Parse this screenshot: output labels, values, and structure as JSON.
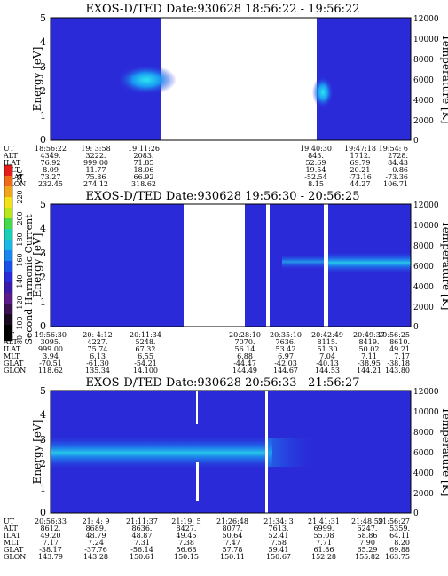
{
  "panels": [
    {
      "title": "EXOS-D/TED   Date:930628   18:56:22 - 19:56:22",
      "ylabel_left": "Energy [eV]",
      "ylabel_right": "Temperature [K]",
      "columns": [
        [
          "18:56:22",
          "4349.",
          "76.92",
          "8.09",
          "73.27",
          "232.45"
        ],
        [
          "19: 3:58",
          "3222.",
          "999.00",
          "11.77",
          "75.86",
          "274.12"
        ],
        [
          "19:11:26",
          "2083.",
          "71.85",
          "18.06",
          "66.92",
          "318.62"
        ],
        [
          "19:40:30",
          "843.",
          "52.69",
          "19.54",
          "-52.54",
          "8.15"
        ],
        [
          "19:47:18",
          "1712.",
          "69.79",
          "20.21",
          "-73.16",
          "44.27"
        ],
        [
          "19:54: 6",
          "2728.",
          "84.43",
          "0.86",
          "-73.36",
          "106.71"
        ]
      ]
    },
    {
      "title": "EXOS-D/TED   Date:930628   19:56:30 - 20:56:25",
      "ylabel_left": "Energy [eV]",
      "ylabel_right": "Temperature [K]",
      "columns": [
        [
          "19:56:30",
          "3095.",
          "999.00",
          "3.94",
          "-70.51",
          "118.62"
        ],
        [
          "20: 4:12",
          "4227.",
          "75.74",
          "6.13",
          "-61.30",
          "135.34"
        ],
        [
          "20:11:34",
          "5248.",
          "67.32",
          "6.55",
          "-54.21",
          "14.100"
        ],
        [
          "20:28:10",
          "7070.",
          "56.14",
          "6.88",
          "-44.47",
          "144.49"
        ],
        [
          "20:35:10",
          "7636.",
          "53.42",
          "6.97",
          "-42.03",
          "144.67"
        ],
        [
          "20:42:49",
          "8115.",
          "51.30",
          "7.04",
          "-40.13",
          "144.53"
        ],
        [
          "20:49:37",
          "8419.",
          "50.02",
          "7.11",
          "-38.95",
          "144.21"
        ],
        [
          "20:56:25",
          "8610.",
          "49.21",
          "7.17",
          "-38.18",
          "143.80"
        ]
      ]
    },
    {
      "title": "EXOS-D/TED   Date:930628   20:56:33 - 21:56:27",
      "ylabel_left": "Energy [eV]",
      "ylabel_right": "Temperature [K]",
      "columns": [
        [
          "20:56:33",
          "8612.",
          "49.20",
          "7.17",
          "-38.17",
          "143.79"
        ],
        [
          "21: 4: 9",
          "8689.",
          "48.79",
          "7.24",
          "-37.76",
          "143.28"
        ],
        [
          "21:11:37",
          "8636.",
          "48.87",
          "7.31",
          "-56.14",
          "150.61"
        ],
        [
          "21:19: 5",
          "8427.",
          "49.45",
          "7.38",
          "56.68",
          "150.15"
        ],
        [
          "21:26:48",
          "8077.",
          "50.64",
          "7.47",
          "57.78",
          "150.11"
        ],
        [
          "21:34: 3",
          "7613.",
          "52.41",
          "7.58",
          "59.41",
          "150.67"
        ],
        [
          "21:41:31",
          "6999.",
          "55.08",
          "7.71",
          "61.86",
          "152.28"
        ],
        [
          "21:48:59",
          "6247.",
          "58.86",
          "7.90",
          "65.29",
          "155.82"
        ],
        [
          "21:56:27",
          "5359.",
          "64.11",
          "8.20",
          "69.88",
          "163.75"
        ]
      ]
    }
  ],
  "row_labels": [
    "UT",
    "ALT",
    "ILAT",
    "MLT",
    "GLAT",
    "GLON"
  ],
  "colorbar": {
    "label": "Second Harmonic Current",
    "ticks": [
      "80",
      "100",
      "120",
      "140",
      "160",
      "180",
      "200",
      "220",
      "240"
    ]
  },
  "chart_data": [
    {
      "type": "heatmap",
      "title": "EXOS-D/TED   Date:930628   18:56:22 - 19:56:22",
      "xlabel": "",
      "ylabel": "Energy [eV]",
      "ylabel_right": "Temperature [K]",
      "ylim": [
        0,
        5
      ],
      "ylim_right": [
        0,
        12000
      ],
      "yticks": [
        0,
        1,
        2,
        3,
        4,
        5
      ],
      "yticks_right": [
        0,
        2000,
        4000,
        6000,
        8000,
        10000,
        12000
      ],
      "x_ticks": [
        "18:56:22",
        "19: 3:58",
        "19:11:26",
        "19:40:30",
        "19:47:18",
        "19:54: 6"
      ],
      "data_gaps": [
        [
          "19:11:26",
          "19:40:30"
        ]
      ],
      "features": [
        {
          "time_range": [
            "19: 3:58",
            "19:11:26"
          ],
          "energy_eV": 2.5,
          "intensity": "high"
        },
        {
          "time_range": [
            "19:40:30",
            "19:47:18"
          ],
          "energy_eV": 2.0,
          "intensity": "high"
        }
      ]
    },
    {
      "type": "heatmap",
      "title": "EXOS-D/TED   Date:930628   19:56:30 - 20:56:25",
      "xlabel": "",
      "ylabel": "Energy [eV]",
      "ylabel_right": "Temperature [K]",
      "ylim": [
        0,
        5
      ],
      "ylim_right": [
        0,
        12000
      ],
      "yticks": [
        0,
        1,
        2,
        3,
        4,
        5
      ],
      "yticks_right": [
        0,
        2000,
        4000,
        6000,
        8000,
        10000,
        12000
      ],
      "x_ticks": [
        "19:56:30",
        "20: 4:12",
        "20:11:34",
        "20:28:10",
        "20:35:10",
        "20:42:49",
        "20:49:37",
        "20:56:25"
      ],
      "data_gaps": [
        [
          "20:11:34",
          "20:28:10"
        ]
      ],
      "features": [
        {
          "time_range": [
            "20:35:10",
            "20:56:25"
          ],
          "energy_eV": 2.8,
          "intensity": "medium"
        }
      ]
    },
    {
      "type": "heatmap",
      "title": "EXOS-D/TED   Date:930628   20:56:33 - 21:56:27",
      "xlabel": "",
      "ylabel": "Energy [eV]",
      "ylabel_right": "Temperature [K]",
      "ylim": [
        0,
        5
      ],
      "ylim_right": [
        0,
        12000
      ],
      "yticks": [
        0,
        1,
        2,
        3,
        4,
        5
      ],
      "yticks_right": [
        0,
        2000,
        4000,
        6000,
        8000,
        10000,
        12000
      ],
      "x_ticks": [
        "20:56:33",
        "21: 4: 9",
        "21:11:37",
        "21:19: 5",
        "21:26:48",
        "21:34: 3",
        "21:41:31",
        "21:48:59",
        "21:56:27"
      ],
      "data_gaps": [],
      "features": [
        {
          "time_range": [
            "20:56:33",
            "21:30:00"
          ],
          "energy_eV": 2.6,
          "intensity": "high"
        }
      ]
    }
  ]
}
